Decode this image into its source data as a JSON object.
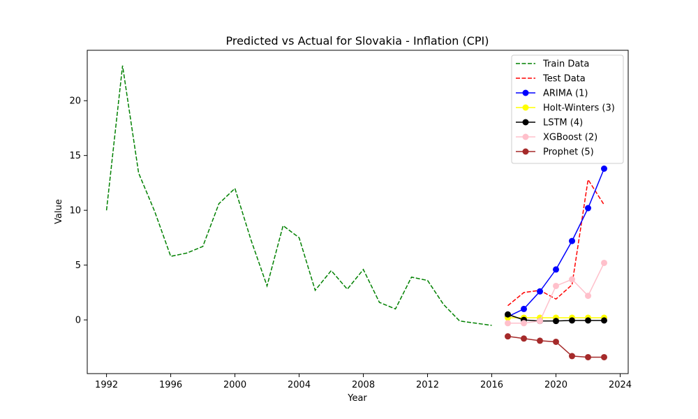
{
  "chart_data": {
    "type": "line",
    "title": "Predicted vs Actual for Slovakia - Inflation (CPI)",
    "xlabel": "Year",
    "ylabel": "Value",
    "xlim": [
      1990.8,
      2024.5
    ],
    "ylim": [
      -4.9,
      24.6
    ],
    "xticks": [
      1992,
      1996,
      2000,
      2004,
      2008,
      2012,
      2016,
      2020,
      2024
    ],
    "yticks": [
      0,
      5,
      10,
      15,
      20
    ],
    "legend_position": "top-right",
    "series": [
      {
        "name": "Train Data",
        "color": "#008000",
        "style": "dashed",
        "marker": false,
        "x": [
          1992,
          1993,
          1994,
          1995,
          1996,
          1997,
          1998,
          1999,
          2000,
          2001,
          2002,
          2003,
          2004,
          2005,
          2006,
          2007,
          2008,
          2009,
          2010,
          2011,
          2012,
          2013,
          2014,
          2015,
          2016
        ],
        "y": [
          10.0,
          23.2,
          13.4,
          9.9,
          5.8,
          6.1,
          6.7,
          10.6,
          12.0,
          7.3,
          3.1,
          8.6,
          7.5,
          2.7,
          4.5,
          2.8,
          4.6,
          1.6,
          1.0,
          3.9,
          3.6,
          1.4,
          -0.1,
          -0.3,
          -0.5
        ]
      },
      {
        "name": "Test Data",
        "color": "#ff0000",
        "style": "dashed",
        "marker": false,
        "x": [
          2017,
          2018,
          2019,
          2020,
          2021,
          2022,
          2023
        ],
        "y": [
          1.3,
          2.5,
          2.7,
          1.9,
          3.2,
          12.8,
          10.5
        ]
      },
      {
        "name": "ARIMA (1)",
        "color": "#0000ff",
        "style": "solid",
        "marker": true,
        "x": [
          2017,
          2018,
          2019,
          2020,
          2021,
          2022,
          2023
        ],
        "y": [
          0.3,
          1.0,
          2.6,
          4.6,
          7.2,
          10.2,
          13.8
        ]
      },
      {
        "name": "Holt-Winters (3)",
        "color": "#ffff00",
        "style": "solid",
        "marker": true,
        "x": [
          2017,
          2018,
          2019,
          2020,
          2021,
          2022,
          2023
        ],
        "y": [
          0.2,
          0.2,
          0.2,
          0.2,
          0.2,
          0.2,
          0.2
        ]
      },
      {
        "name": "LSTM (4)",
        "color": "#000000",
        "style": "solid",
        "marker": true,
        "x": [
          2017,
          2018,
          2019,
          2020,
          2021,
          2022,
          2023
        ],
        "y": [
          0.5,
          0.0,
          -0.1,
          -0.1,
          -0.05,
          -0.05,
          -0.05
        ]
      },
      {
        "name": "XGBoost (2)",
        "color": "#ffc0cb",
        "style": "solid",
        "marker": true,
        "x": [
          2017,
          2018,
          2019,
          2020,
          2021,
          2022,
          2023
        ],
        "y": [
          -0.3,
          -0.3,
          -0.1,
          3.1,
          3.7,
          2.2,
          5.2
        ]
      },
      {
        "name": "Prophet (5)",
        "color": "#a52a2a",
        "style": "solid",
        "marker": true,
        "x": [
          2017,
          2018,
          2019,
          2020,
          2021,
          2022,
          2023
        ],
        "y": [
          -1.5,
          -1.7,
          -1.9,
          -2.0,
          -3.3,
          -3.4,
          -3.4
        ]
      }
    ]
  }
}
